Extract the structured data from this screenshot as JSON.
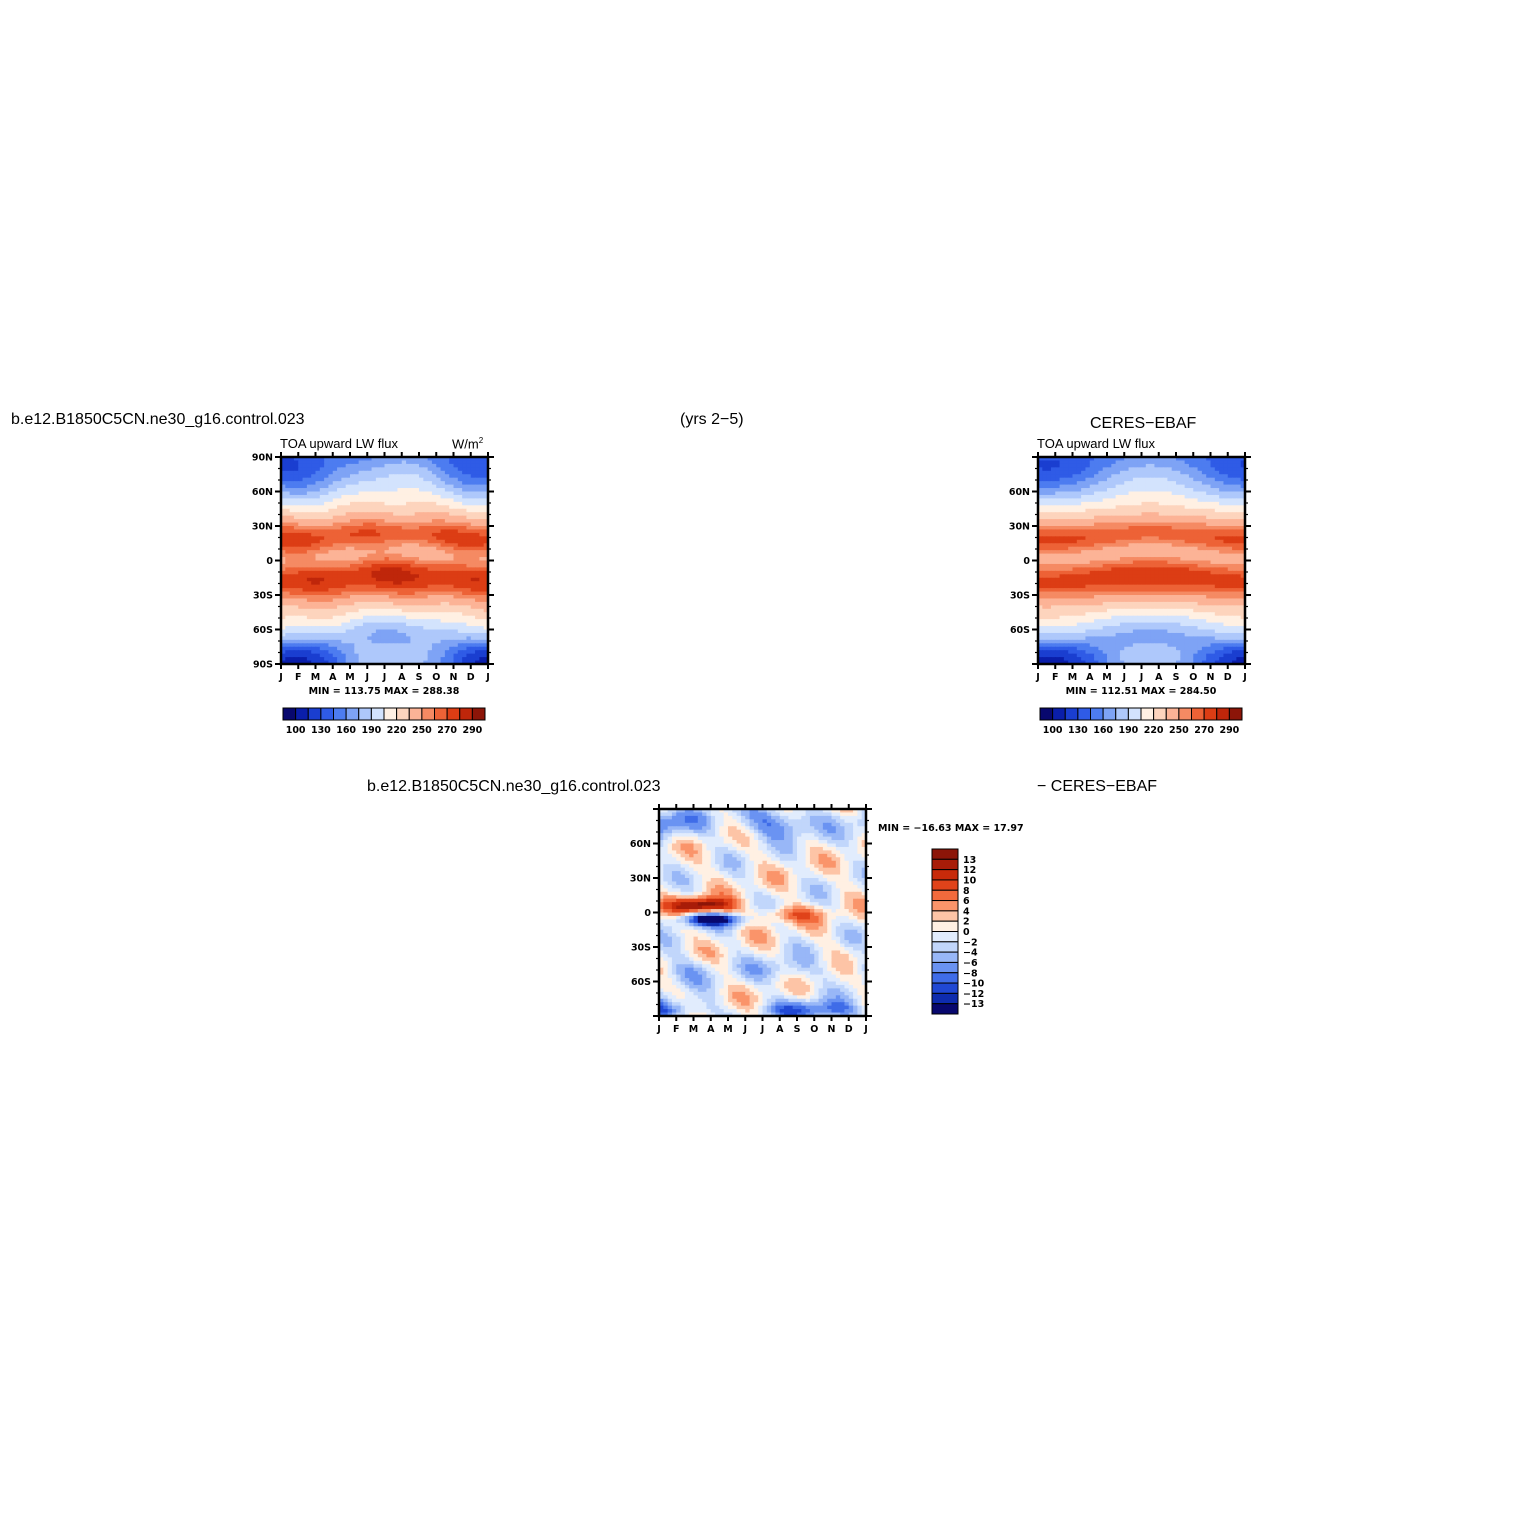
{
  "page": {
    "case_title_top": "b.e12.B1850C5CN.ne30_g16.control.023",
    "years": "(yrs 2−5)",
    "obs_title": "CERES−EBAF",
    "case_title_bottom": "b.e12.B1850C5CN.ne30_g16.control.023",
    "diff_suffix": "− CERES−EBAF"
  },
  "chart_data": [
    {
      "type": "heatmap",
      "panel": "model",
      "title_left": "TOA upward LW flux",
      "units": "W/m",
      "units_sup": "2",
      "x_ticklabels": [
        "J",
        "F",
        "M",
        "A",
        "M",
        "J",
        "J",
        "A",
        "S",
        "O",
        "N",
        "D",
        "J"
      ],
      "y_ticklabels": [
        "90N",
        "60N",
        "30N",
        "0",
        "30S",
        "60S",
        "90S"
      ],
      "ylim": [
        -90,
        90
      ],
      "stats": "MIN = 113.75  MAX = 288.38",
      "min": 113.75,
      "max": 288.38,
      "colorbar_labels": [
        "100",
        "130",
        "160",
        "190",
        "220",
        "250",
        "270",
        "290"
      ],
      "colorbar_levels": [
        100,
        115,
        130,
        145,
        160,
        175,
        190,
        205,
        220,
        235,
        250,
        260,
        270,
        280,
        290
      ],
      "colorbar_orientation": "horizontal"
    },
    {
      "type": "heatmap",
      "panel": "obs",
      "title_left": "TOA upward LW flux",
      "x_ticklabels": [
        "J",
        "F",
        "M",
        "A",
        "M",
        "J",
        "J",
        "A",
        "S",
        "O",
        "N",
        "D",
        "J"
      ],
      "y_ticklabels": [
        "60N",
        "30N",
        "0",
        "30S",
        "60S"
      ],
      "ylim": [
        -90,
        90
      ],
      "stats": "MIN = 112.51  MAX = 284.50",
      "min": 112.51,
      "max": 284.5,
      "colorbar_labels": [
        "100",
        "130",
        "160",
        "190",
        "220",
        "250",
        "270",
        "290"
      ],
      "colorbar_levels": [
        100,
        115,
        130,
        145,
        160,
        175,
        190,
        205,
        220,
        235,
        250,
        260,
        270,
        280,
        290
      ],
      "colorbar_orientation": "horizontal"
    },
    {
      "type": "heatmap",
      "panel": "difference",
      "x_ticklabels": [
        "J",
        "F",
        "M",
        "A",
        "M",
        "J",
        "J",
        "A",
        "S",
        "O",
        "N",
        "D",
        "J"
      ],
      "y_ticklabels": [
        "60N",
        "30N",
        "0",
        "30S",
        "60S"
      ],
      "ylim": [
        -90,
        90
      ],
      "stats": "MIN = −16.63 MAX =  17.97",
      "min": -16.63,
      "max": 17.97,
      "colorbar_labels": [
        "13",
        "12",
        "10",
        "8",
        "6",
        "4",
        "2",
        "0",
        "−2",
        "−4",
        "−6",
        "−8",
        "−10",
        "−12",
        "−13"
      ],
      "colorbar_levels": [
        13,
        12,
        10,
        8,
        6,
        4,
        2,
        0,
        -2,
        -4,
        -6,
        -8,
        -10,
        -12,
        -13
      ],
      "colorbar_orientation": "vertical"
    }
  ],
  "colors": {
    "abs_scale": [
      "#08086e",
      "#0a1eaa",
      "#1a3ed0",
      "#2f5be6",
      "#4d7cf0",
      "#7ea3f5",
      "#aec8fb",
      "#d3e3fd",
      "#fff0e3",
      "#fdd4bd",
      "#fcb396",
      "#f58a63",
      "#ed6236",
      "#dc3d14",
      "#bf260a",
      "#8c1508"
    ],
    "diff_scale": [
      "#8c1508",
      "#a81c08",
      "#c82a0a",
      "#e0431a",
      "#f26a3c",
      "#fa946a",
      "#fdc4a6",
      "#fff0e3",
      "#e1ecfd",
      "#c1d6fb",
      "#98b7f7",
      "#6a93f2",
      "#3f6ce8",
      "#2048d4",
      "#0e2cae",
      "#08086e"
    ]
  }
}
